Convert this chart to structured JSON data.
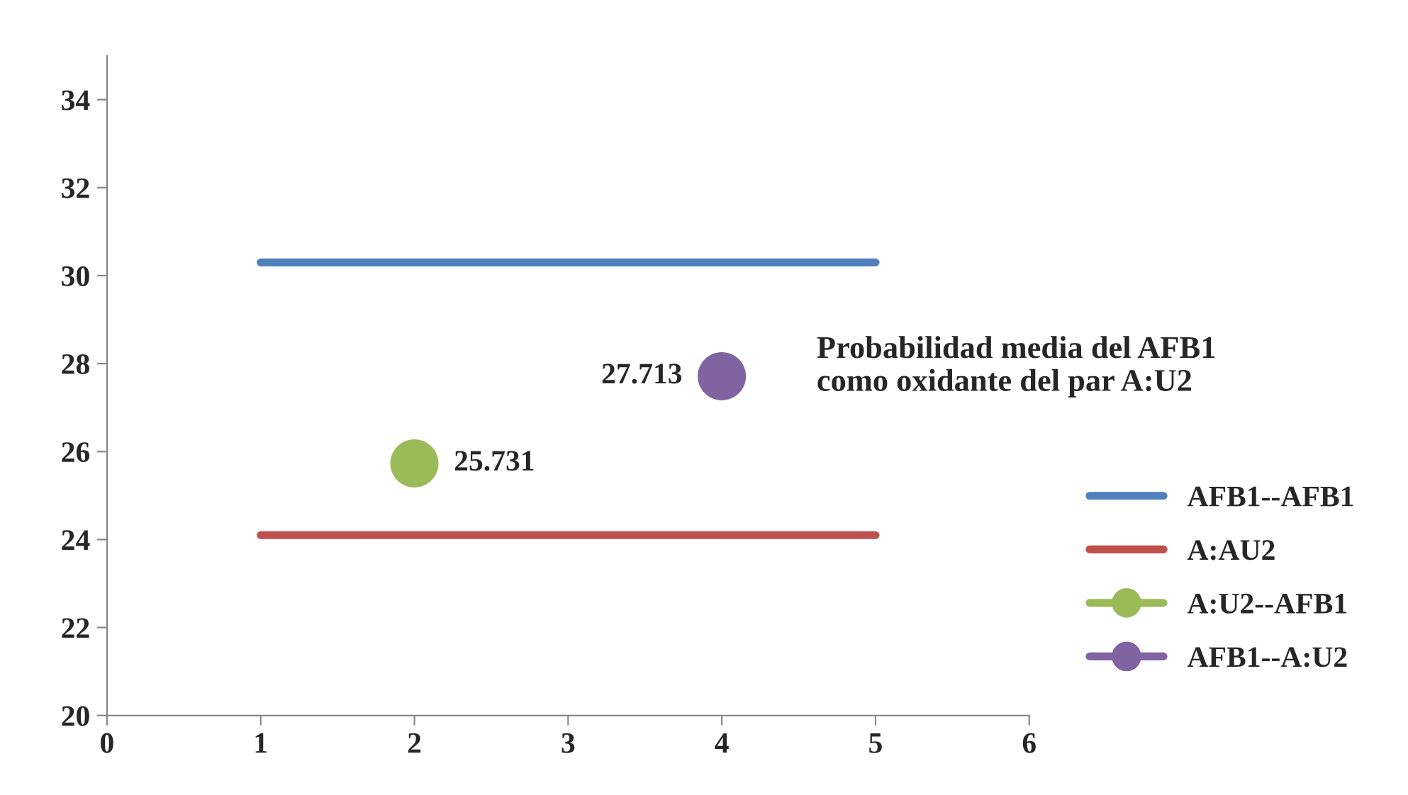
{
  "chart_data": {
    "type": "scatter",
    "title": "Probabilidad media del AFB1\ncomo oxidante del par A:U2",
    "series": [
      {
        "name": "AFB1--AFB1",
        "type": "line",
        "color": "#4f81bd",
        "x": [
          1,
          5
        ],
        "values": [
          30.3,
          30.3
        ],
        "marker": "none"
      },
      {
        "name": "A:AU2",
        "type": "line",
        "color": "#c0504d",
        "x": [
          1,
          5
        ],
        "values": [
          24.1,
          24.1
        ],
        "marker": "none"
      },
      {
        "name": "A:U2--AFB1",
        "color": "#9bbb59",
        "x": [
          2
        ],
        "values": [
          25.731
        ],
        "value_labels": [
          "25.731"
        ],
        "marker": "circle"
      },
      {
        "name": "AFB1--A:U2",
        "color": "#8064a2",
        "x": [
          4
        ],
        "values": [
          27.713
        ],
        "value_labels": [
          "27.713"
        ],
        "marker": "circle"
      }
    ],
    "xlim": [
      0,
      6
    ],
    "xticks": [
      0,
      1,
      2,
      3,
      4,
      5,
      6
    ],
    "ylim": [
      20,
      35
    ],
    "yticks": [
      20,
      22,
      24,
      26,
      28,
      30,
      32,
      34
    ],
    "grid": false,
    "legend": "right"
  }
}
